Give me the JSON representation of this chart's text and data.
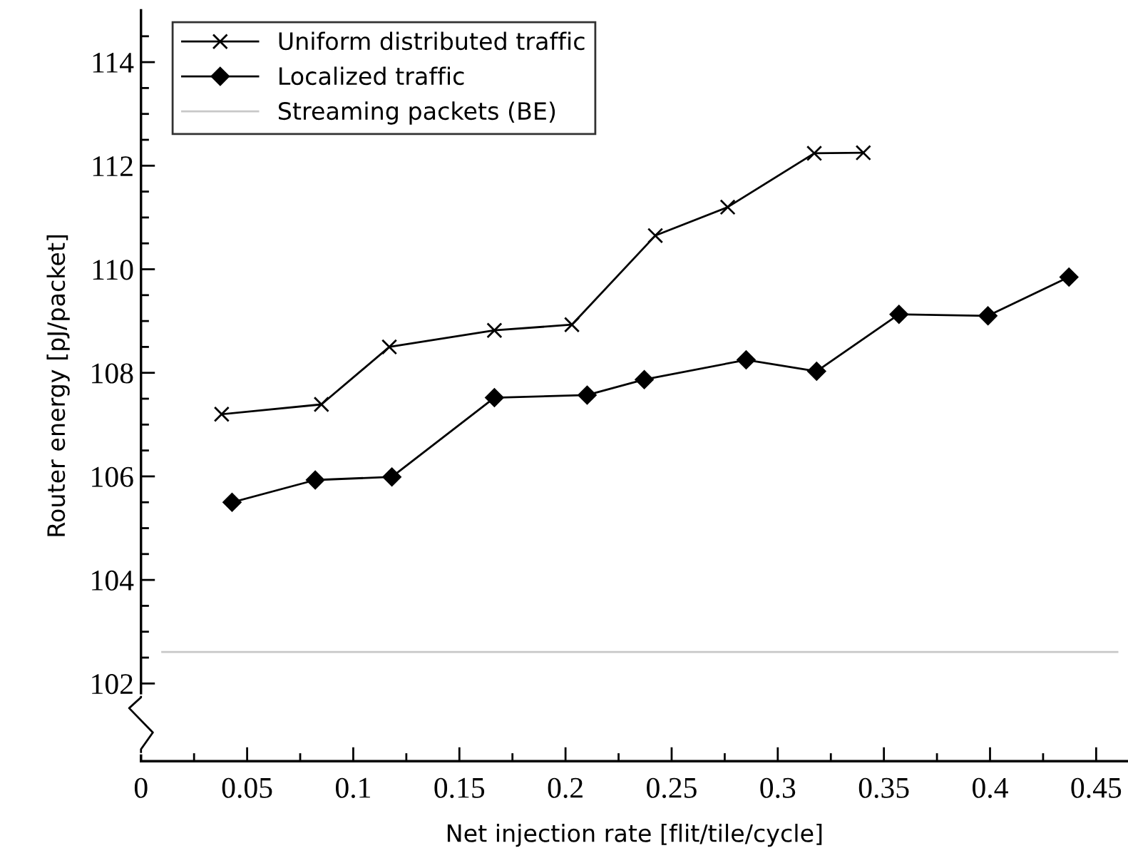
{
  "chart_data": {
    "type": "line",
    "xlabel": "Net injection rate [flit/tile/cycle]",
    "ylabel": "Router energy [pJ/packet]",
    "series": [
      {
        "name": "Uniform distributed traffic",
        "color": "#000000",
        "marker": "cross",
        "x": [
          0.038,
          0.085,
          0.117,
          0.1665,
          0.203,
          0.2423,
          0.2764,
          0.3172,
          0.3403
        ],
        "values": [
          107.2,
          107.39,
          108.5,
          108.82,
          108.93,
          110.65,
          111.2,
          112.24,
          112.25
        ]
      },
      {
        "name": "Localized traffic",
        "color": "#000000",
        "marker": "diamond",
        "x": [
          0.0429,
          0.0821,
          0.1182,
          0.1665,
          0.2102,
          0.2371,
          0.2851,
          0.3183,
          0.3571,
          0.399,
          0.4372
        ],
        "values": [
          105.5,
          105.93,
          105.99,
          107.52,
          107.57,
          107.87,
          108.25,
          108.03,
          109.13,
          109.1,
          109.85
        ]
      },
      {
        "name": "Streaming packets (BE)",
        "color": "#c8c8c8",
        "marker": "none",
        "x": [
          0.01,
          0.46
        ],
        "values": [
          102.61,
          102.61
        ]
      }
    ],
    "xlim": [
      0,
      0.465
    ],
    "ylim": [
      100.5,
      115
    ],
    "xticks": [
      0,
      {
        "value": 0.025,
        "label": null
      },
      0.05,
      {
        "value": 0.075,
        "label": null
      },
      0.1,
      {
        "value": 0.125,
        "label": null
      },
      0.15,
      {
        "value": 0.175,
        "label": null
      },
      0.2,
      {
        "value": 0.225,
        "label": null
      },
      0.25,
      {
        "value": 0.275,
        "label": null
      },
      0.3,
      {
        "value": 0.325,
        "label": null
      },
      0.35,
      {
        "value": 0.375,
        "label": null
      },
      0.4,
      {
        "value": 0.425,
        "label": null
      },
      0.45
    ],
    "yticks": [
      102,
      {
        "value": 102.5,
        "label": null
      },
      {
        "value": 103,
        "label": null
      },
      {
        "value": 103.5,
        "label": null
      },
      104,
      {
        "value": 104.5,
        "label": null
      },
      {
        "value": 105,
        "label": null
      },
      {
        "value": 105.5,
        "label": null
      },
      106,
      {
        "value": 106.5,
        "label": null
      },
      {
        "value": 107,
        "label": null
      },
      {
        "value": 107.5,
        "label": null
      },
      108,
      {
        "value": 108.5,
        "label": null
      },
      {
        "value": 109,
        "label": null
      },
      {
        "value": 109.5,
        "label": null
      },
      110,
      {
        "value": 110.5,
        "label": null
      },
      {
        "value": 111,
        "label": null
      },
      {
        "value": 111.5,
        "label": null
      },
      112,
      {
        "value": 112.5,
        "label": null
      },
      {
        "value": 113,
        "label": null
      },
      {
        "value": 113.5,
        "label": null
      },
      114,
      {
        "value": 114.5,
        "label": null
      }
    ],
    "grid": false,
    "legend": "top left",
    "line_style": "solid"
  }
}
